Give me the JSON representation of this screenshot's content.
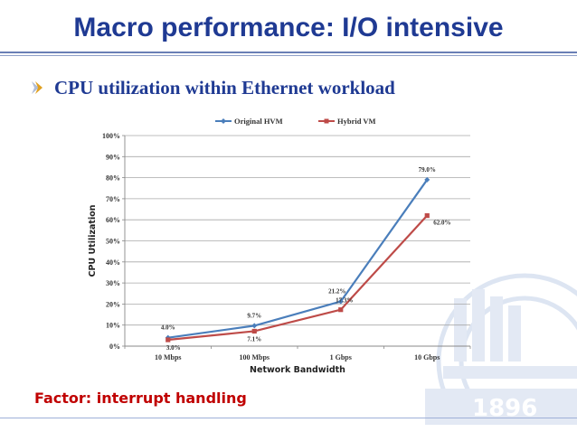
{
  "slide": {
    "title": "Macro performance: I/O intensive",
    "bullet": "CPU utilization within Ethernet workload",
    "factor": "Factor: interrupt handling"
  },
  "chart_data": {
    "type": "line",
    "categories": [
      "10 Mbps",
      "100 Mbps",
      "1 Gbps",
      "10 Gbps"
    ],
    "xlabel": "Network Bandwidth",
    "ylabel": "CPU Utilization",
    "ylim": [
      0,
      100
    ],
    "yticks": [
      "0%",
      "10%",
      "20%",
      "30%",
      "40%",
      "50%",
      "60%",
      "70%",
      "80%",
      "90%",
      "100%"
    ],
    "grid": true,
    "legend_position": "top",
    "series": [
      {
        "name": "Original HVM",
        "color": "#4a7ebb",
        "marker": "diamond",
        "values": [
          4.0,
          9.7,
          21.2,
          79.0
        ],
        "labels": [
          "4.0%",
          "9.7%",
          "21.2%",
          "79.0%"
        ]
      },
      {
        "name": "Hybrid VM",
        "color": "#be4b48",
        "marker": "square",
        "values": [
          3.0,
          7.1,
          17.3,
          62.0
        ],
        "labels": [
          "3.0%",
          "7.1%",
          "17.3%",
          "62.0%"
        ]
      }
    ]
  },
  "colors": {
    "title": "#1f3a93",
    "factor": "#c00000"
  },
  "icons": {
    "bullet": "arrow-bullet-icon",
    "watermark": "university-emblem-1896"
  }
}
